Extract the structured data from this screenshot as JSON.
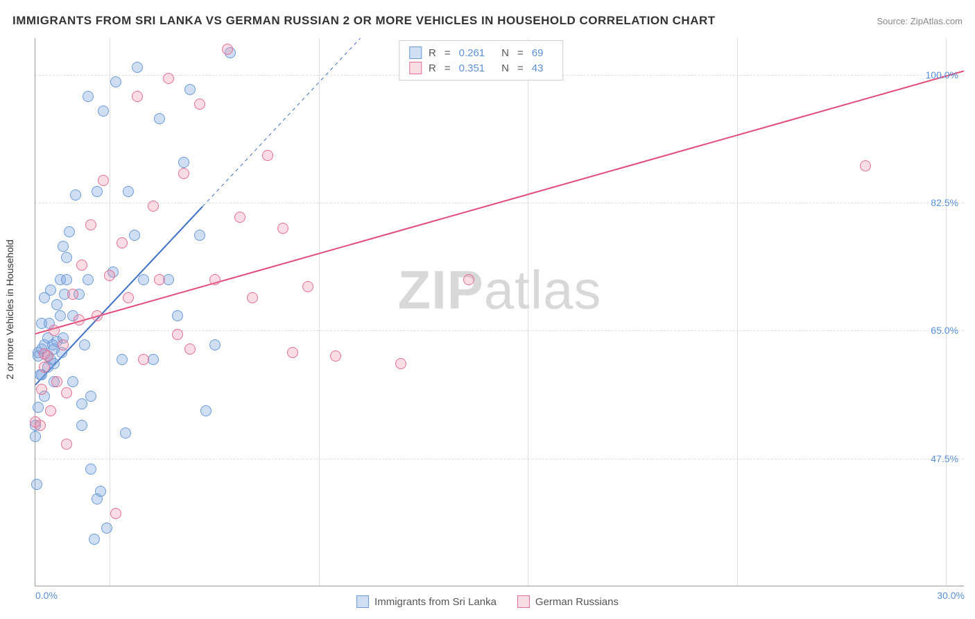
{
  "title": "IMMIGRANTS FROM SRI LANKA VS GERMAN RUSSIAN 2 OR MORE VEHICLES IN HOUSEHOLD CORRELATION CHART",
  "source": "Source: ZipAtlas.com",
  "y_axis_label": "2 or more Vehicles in Household",
  "watermark_bold": "ZIP",
  "watermark_light": "atlas",
  "chart": {
    "type": "scatter",
    "xlim": [
      0.0,
      30.0
    ],
    "ylim": [
      30.0,
      105.0
    ],
    "x_ticks": [
      0.0,
      30.0
    ],
    "x_tick_labels": [
      "0.0%",
      "30.0%"
    ],
    "y_ticks": [
      47.5,
      65.0,
      82.5,
      100.0
    ],
    "y_tick_labels": [
      "47.5%",
      "65.0%",
      "82.5%",
      "100.0%"
    ],
    "v_grid_positions_pct": [
      8,
      30.5,
      53,
      75.5,
      98
    ],
    "background_color": "#ffffff",
    "grid_color": "#dddddd",
    "axis_color": "#999999",
    "tick_label_color": "#5a8fd8",
    "marker_radius": 8,
    "marker_stroke_width": 1.5
  },
  "series": [
    {
      "name": "Immigrants from Sri Lanka",
      "color_fill": "rgba(120,160,220,0.35)",
      "color_stroke": "#6a9bd8",
      "R": "0.261",
      "N": "69",
      "trend": {
        "x1": 0.0,
        "y1": 57.5,
        "x2": 10.5,
        "y2": 105.0,
        "dash_from_x": 5.4,
        "color": "#3b6fc4",
        "width": 2
      },
      "points": [
        [
          0.1,
          61.5
        ],
        [
          0.1,
          62.0
        ],
        [
          0.2,
          62.5
        ],
        [
          0.2,
          59.0
        ],
        [
          0.3,
          63.0
        ],
        [
          0.3,
          56.0
        ],
        [
          0.2,
          66.0
        ],
        [
          0.4,
          64.0
        ],
        [
          0.4,
          60.0
        ],
        [
          0.5,
          61.0
        ],
        [
          0.5,
          70.5
        ],
        [
          0.6,
          62.5
        ],
        [
          0.6,
          58.0
        ],
        [
          0.7,
          63.5
        ],
        [
          0.8,
          72.0
        ],
        [
          0.8,
          67.0
        ],
        [
          0.9,
          76.5
        ],
        [
          0.9,
          64.0
        ],
        [
          1.0,
          72.0
        ],
        [
          1.0,
          75.0
        ],
        [
          1.1,
          78.5
        ],
        [
          1.2,
          67.0
        ],
        [
          1.2,
          58.0
        ],
        [
          1.3,
          83.5
        ],
        [
          1.4,
          70.0
        ],
        [
          1.5,
          55.0
        ],
        [
          1.5,
          52.0
        ],
        [
          1.6,
          63.0
        ],
        [
          1.7,
          97.0
        ],
        [
          1.7,
          72.0
        ],
        [
          1.8,
          46.0
        ],
        [
          1.8,
          56.0
        ],
        [
          1.9,
          36.5
        ],
        [
          2.0,
          84.0
        ],
        [
          2.0,
          42.0
        ],
        [
          2.1,
          43.0
        ],
        [
          2.2,
          95.0
        ],
        [
          2.3,
          38.0
        ],
        [
          2.5,
          73.0
        ],
        [
          2.6,
          99.0
        ],
        [
          2.8,
          61.0
        ],
        [
          2.9,
          51.0
        ],
        [
          3.0,
          84.0
        ],
        [
          3.2,
          78.0
        ],
        [
          3.3,
          101.0
        ],
        [
          3.5,
          72.0
        ],
        [
          3.8,
          61.0
        ],
        [
          4.0,
          94.0
        ],
        [
          4.3,
          72.0
        ],
        [
          4.6,
          67.0
        ],
        [
          4.8,
          88.0
        ],
        [
          5.0,
          98.0
        ],
        [
          5.3,
          78.0
        ],
        [
          5.5,
          54.0
        ],
        [
          5.8,
          63.0
        ],
        [
          6.3,
          103.0
        ],
        [
          0.0,
          52.0
        ],
        [
          0.0,
          50.5
        ],
        [
          0.05,
          44.0
        ],
        [
          0.1,
          54.5
        ],
        [
          0.15,
          59.0
        ],
        [
          0.3,
          69.5
        ],
        [
          0.4,
          61.5
        ],
        [
          0.45,
          66.0
        ],
        [
          0.55,
          63.0
        ],
        [
          0.6,
          60.5
        ],
        [
          0.7,
          68.5
        ],
        [
          0.85,
          62.0
        ],
        [
          0.95,
          70.0
        ]
      ]
    },
    {
      "name": "German Russians",
      "color_fill": "rgba(235,140,165,0.30)",
      "color_stroke": "#e36f94",
      "R": "0.351",
      "N": "43",
      "trend": {
        "x1": 0.0,
        "y1": 64.5,
        "x2": 30.0,
        "y2": 100.5,
        "color": "#e24a78",
        "width": 2
      },
      "points": [
        [
          0.0,
          52.5
        ],
        [
          0.2,
          57.0
        ],
        [
          0.3,
          60.0
        ],
        [
          0.3,
          61.8
        ],
        [
          0.5,
          54.0
        ],
        [
          0.6,
          65.0
        ],
        [
          0.7,
          58.0
        ],
        [
          0.9,
          63.0
        ],
        [
          1.0,
          56.5
        ],
        [
          1.2,
          70.0
        ],
        [
          1.4,
          66.5
        ],
        [
          1.5,
          74.0
        ],
        [
          1.8,
          79.5
        ],
        [
          2.0,
          67.0
        ],
        [
          2.2,
          85.5
        ],
        [
          2.4,
          72.5
        ],
        [
          2.6,
          40.0
        ],
        [
          2.8,
          77.0
        ],
        [
          3.0,
          69.5
        ],
        [
          3.3,
          97.0
        ],
        [
          3.5,
          61.0
        ],
        [
          3.8,
          82.0
        ],
        [
          4.0,
          72.0
        ],
        [
          4.3,
          99.5
        ],
        [
          4.6,
          64.5
        ],
        [
          4.8,
          86.5
        ],
        [
          5.0,
          62.5
        ],
        [
          5.3,
          96.0
        ],
        [
          5.8,
          72.0
        ],
        [
          6.2,
          103.5
        ],
        [
          6.6,
          80.5
        ],
        [
          7.0,
          69.5
        ],
        [
          7.5,
          89.0
        ],
        [
          8.0,
          79.0
        ],
        [
          8.3,
          62.0
        ],
        [
          8.8,
          71.0
        ],
        [
          9.7,
          61.5
        ],
        [
          11.8,
          60.5
        ],
        [
          14.0,
          72.0
        ],
        [
          26.8,
          87.5
        ],
        [
          1.0,
          49.5
        ],
        [
          0.15,
          52.0
        ],
        [
          0.4,
          61.5
        ]
      ]
    }
  ],
  "stats_box": {
    "R_label": "R",
    "N_label": "N",
    "eq": "="
  },
  "legend_bottom": {
    "series1": "Immigrants from Sri Lanka",
    "series2": "German Russians"
  }
}
